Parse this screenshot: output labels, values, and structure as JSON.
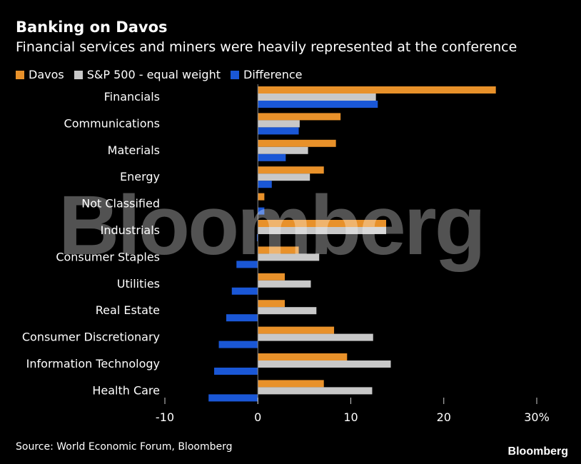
{
  "header": {
    "title": "Banking on Davos",
    "subtitle": "Financial services and miners were heavily represented at the conference"
  },
  "legend": [
    {
      "label": "Davos",
      "color": "#e8912a"
    },
    {
      "label": "S&P 500 - equal weight",
      "color": "#c8c8c8"
    },
    {
      "label": "Difference",
      "color": "#1a57d6"
    }
  ],
  "footer": {
    "source": "Source: World Economic Forum, Bloomberg",
    "brand": "Bloomberg"
  },
  "watermark": "Bloomberg",
  "chart_data": {
    "type": "bar",
    "orientation": "horizontal",
    "categories": [
      "Financials",
      "Communications",
      "Materials",
      "Energy",
      "Not Classified",
      "Industrials",
      "Consumer Staples",
      "Utilities",
      "Real Estate",
      "Consumer Discretionary",
      "Information Technology",
      "Health Care"
    ],
    "series": [
      {
        "name": "Davos",
        "color": "#e8912a",
        "values": [
          25.6,
          8.9,
          8.4,
          7.1,
          0.7,
          13.8,
          4.4,
          2.9,
          2.9,
          8.2,
          9.6,
          7.1
        ]
      },
      {
        "name": "S&P 500 - equal weight",
        "color": "#c8c8c8",
        "values": [
          12.7,
          4.5,
          5.4,
          5.6,
          0.0,
          13.8,
          6.6,
          5.7,
          6.3,
          12.4,
          14.3,
          12.3
        ]
      },
      {
        "name": "Difference",
        "color": "#1a57d6",
        "values": [
          12.9,
          4.4,
          3.0,
          1.5,
          0.7,
          -0.1,
          -2.3,
          -2.8,
          -3.4,
          -4.2,
          -4.7,
          -5.3
        ]
      }
    ],
    "xlim": [
      -10,
      30
    ],
    "xticks": [
      -10,
      0,
      10,
      20,
      30
    ],
    "xtick_labels": [
      "-10",
      "0",
      "10",
      "20",
      "30%"
    ],
    "grid": false,
    "legend_position": "top-left"
  }
}
